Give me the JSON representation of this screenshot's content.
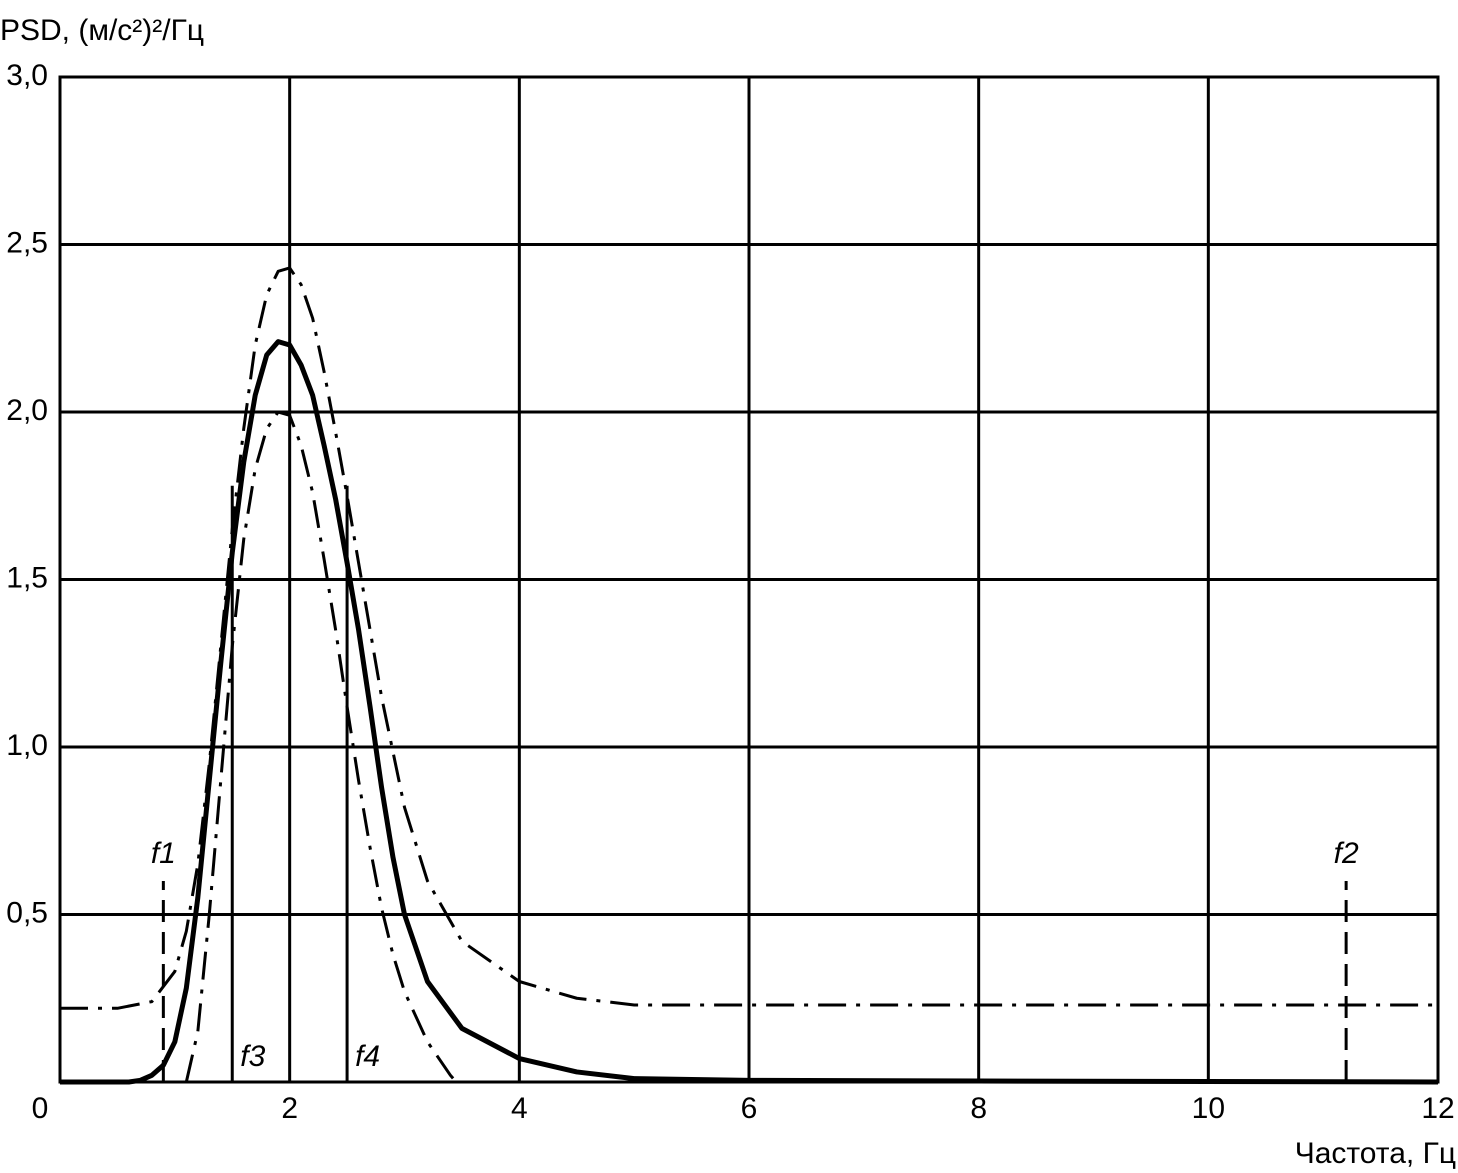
{
  "chart_data": {
    "type": "line",
    "y_axis_label": "PSD, (м/с²)²/Гц",
    "x_axis_label": "Частота, Гц",
    "xlim": [
      0,
      12
    ],
    "ylim": [
      0,
      3
    ],
    "xticks": [
      0,
      2,
      4,
      6,
      8,
      10,
      12
    ],
    "yticks": [
      {
        "value": 0.5,
        "label": "0,5"
      },
      {
        "value": 1,
        "label": "1,0"
      },
      {
        "value": 1.5,
        "label": "1,5"
      },
      {
        "value": 2,
        "label": "2,0"
      },
      {
        "value": 2.5,
        "label": "2,5"
      },
      {
        "value": 3,
        "label": "3,0"
      }
    ],
    "grid": true,
    "series": [
      {
        "color": "#000000",
        "style": "solid",
        "x": [
          0,
          0.6,
          0.7,
          0.8,
          0.9,
          1.0,
          1.1,
          1.2,
          1.3,
          1.4,
          1.5,
          1.6,
          1.7,
          1.8,
          1.9,
          2.0,
          2.1,
          2.2,
          2.3,
          2.4,
          2.5,
          2.6,
          2.7,
          2.8,
          2.9,
          3.0,
          3.2,
          3.5,
          4.0,
          4.5,
          5.0,
          6,
          8,
          12
        ],
        "values": [
          0,
          0,
          0.005,
          0.02,
          0.05,
          0.12,
          0.28,
          0.55,
          0.9,
          1.25,
          1.58,
          1.85,
          2.05,
          2.17,
          2.21,
          2.2,
          2.14,
          2.05,
          1.9,
          1.74,
          1.55,
          1.35,
          1.12,
          0.88,
          0.67,
          0.5,
          0.3,
          0.16,
          0.07,
          0.03,
          0.01,
          0.005,
          0.003,
          0
        ]
      },
      {
        "color": "#000000",
        "style": "dashdot",
        "x": [
          0,
          0.5,
          0.8,
          1.0,
          1.1,
          1.2,
          1.3,
          1.4,
          1.5,
          1.6,
          1.7,
          1.8,
          1.9,
          2.0,
          2.1,
          2.2,
          2.3,
          2.4,
          2.5,
          2.6,
          2.7,
          2.8,
          3.0,
          3.2,
          3.5,
          4.0,
          4.5,
          5.0,
          12
        ],
        "values": [
          0.22,
          0.22,
          0.24,
          0.33,
          0.45,
          0.65,
          0.95,
          1.3,
          1.65,
          1.95,
          2.2,
          2.35,
          2.42,
          2.43,
          2.38,
          2.28,
          2.12,
          1.94,
          1.75,
          1.55,
          1.35,
          1.15,
          0.82,
          0.6,
          0.42,
          0.3,
          0.25,
          0.23,
          0.23
        ]
      },
      {
        "color": "#000000",
        "style": "dashdot",
        "x": [
          1.1,
          1.2,
          1.3,
          1.4,
          1.5,
          1.6,
          1.7,
          1.8,
          1.9,
          2.0,
          2.1,
          2.2,
          2.3,
          2.4,
          2.5,
          2.6,
          2.7,
          2.8,
          2.9,
          3.0,
          3.2,
          3.4,
          3.45
        ],
        "values": [
          0,
          0.15,
          0.5,
          0.9,
          1.3,
          1.62,
          1.83,
          1.95,
          2.0,
          1.99,
          1.9,
          1.76,
          1.56,
          1.35,
          1.12,
          0.9,
          0.7,
          0.52,
          0.38,
          0.27,
          0.12,
          0.02,
          0
        ]
      }
    ],
    "markers": [
      {
        "label": "f1",
        "x": 0.9,
        "height": 0.6,
        "style": "dashed"
      },
      {
        "label": "f2",
        "x": 11.2,
        "height": 0.6,
        "style": "dashed"
      },
      {
        "label": "f3",
        "x": 1.5,
        "height": 1.78,
        "style": "solid"
      },
      {
        "label": "f4",
        "x": 2.5,
        "height": 1.78,
        "style": "solid"
      }
    ]
  }
}
